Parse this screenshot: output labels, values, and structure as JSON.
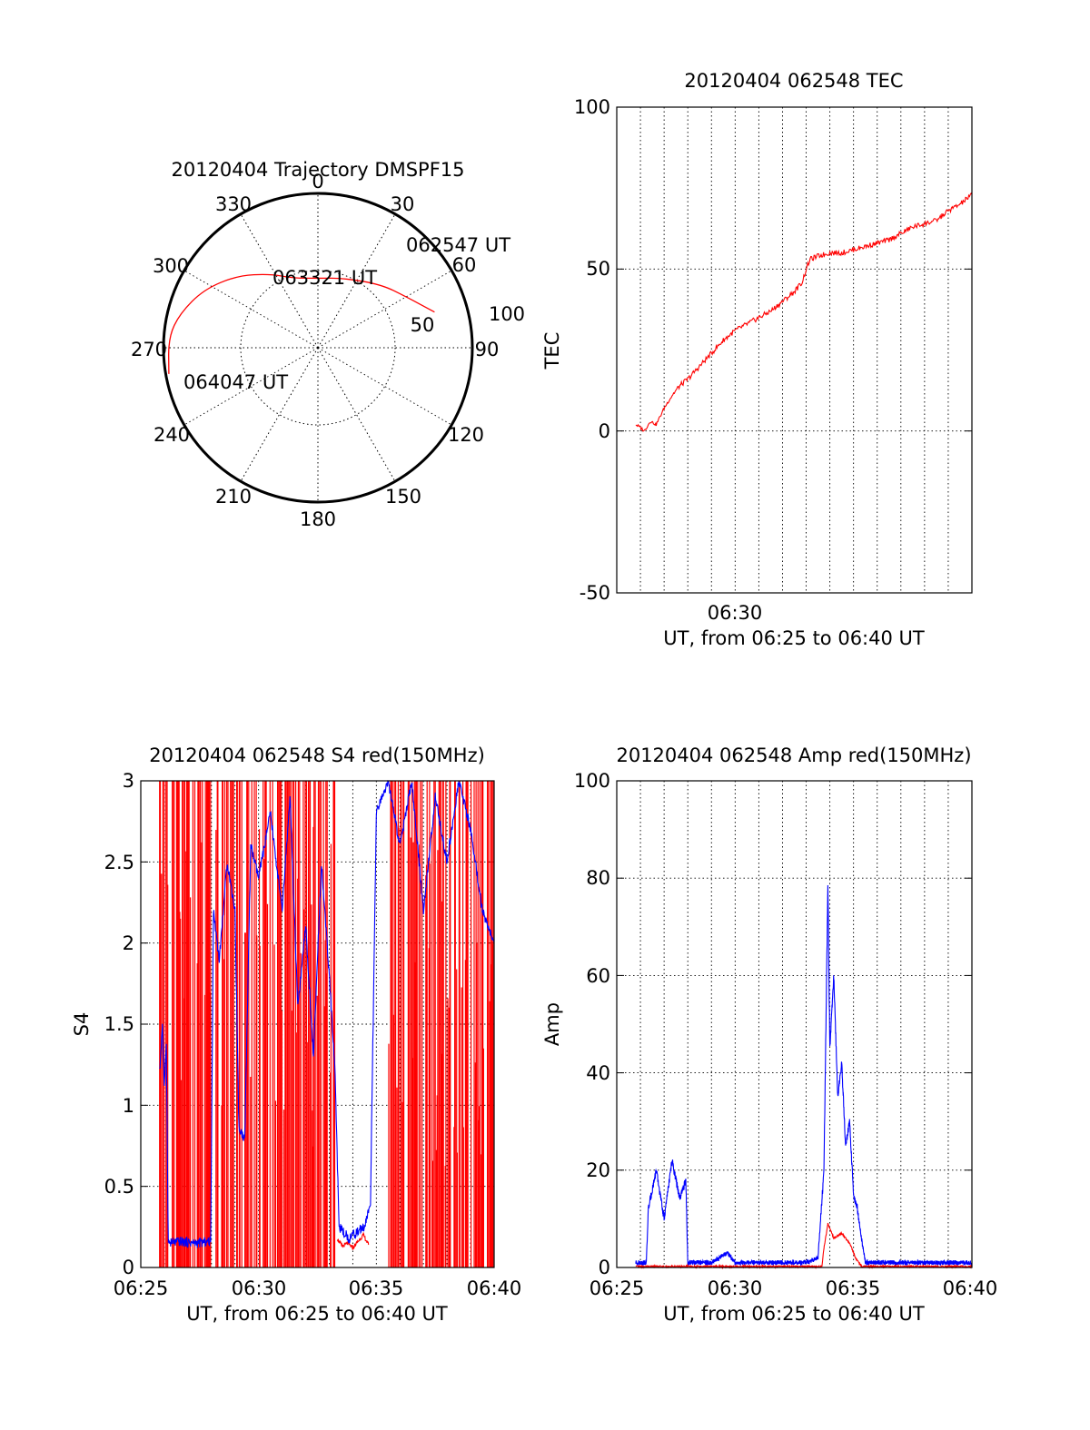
{
  "colors": {
    "red": "#ff0000",
    "blue": "#0000ff",
    "axis": "#000000",
    "grid": "#000000"
  },
  "chart_data": [
    {
      "id": "trajectory",
      "type": "polar",
      "title": "20120404 Trajectory DMSPF15",
      "azimuth_labels": [
        "0",
        "30",
        "60",
        "90",
        "120",
        "150",
        "180",
        "210",
        "240",
        "270",
        "300",
        "330"
      ],
      "radial_labels": [
        "50",
        "100"
      ],
      "series": [
        {
          "color": "red",
          "points": [
            {
              "az": 73,
              "r": 79
            },
            {
              "az": 60,
              "r": 66
            },
            {
              "az": 45,
              "r": 58
            },
            {
              "az": 20,
              "r": 48
            },
            {
              "az": 0,
              "r": 45
            },
            {
              "az": -20,
              "r": 48
            },
            {
              "az": -33,
              "r": 57
            },
            {
              "az": -48,
              "r": 70
            },
            {
              "az": -63,
              "r": 83
            },
            {
              "az": -76,
              "r": 92
            },
            {
              "az": -86,
              "r": 97
            },
            {
              "az": -100,
              "r": 98
            }
          ]
        }
      ],
      "annotations": [
        {
          "text": "062547 UT",
          "az": 73,
          "r": 79
        },
        {
          "text": "063321 UT",
          "az": -11,
          "r": 45
        },
        {
          "text": "064047 UT",
          "az": -100,
          "r": 98
        }
      ]
    },
    {
      "id": "tec",
      "type": "line",
      "title": "20120404 062548 TEC",
      "ylabel": "TEC",
      "xlabel": "UT, from 06:25 to 06:40 UT",
      "xlim": [
        "06:25:00",
        "06:40:00"
      ],
      "ylim": [
        -50,
        100
      ],
      "yticks": [
        "-50",
        "0",
        "50",
        "100"
      ],
      "xticks": [
        {
          "t": "06:30:00",
          "label": "06:30"
        }
      ],
      "series": [
        {
          "color": "red",
          "points": [
            [
              "06:25:48",
              2
            ],
            [
              "06:26:00",
              1
            ],
            [
              "06:26:10",
              0
            ],
            [
              "06:26:25",
              3
            ],
            [
              "06:26:40",
              2
            ],
            [
              "06:27:00",
              7
            ],
            [
              "06:27:20",
              11
            ],
            [
              "06:27:40",
              14
            ],
            [
              "06:28:00",
              16
            ],
            [
              "06:28:30",
              20
            ],
            [
              "06:29:00",
              24
            ],
            [
              "06:29:30",
              28
            ],
            [
              "06:30:00",
              31
            ],
            [
              "06:30:30",
              33
            ],
            [
              "06:31:00",
              35
            ],
            [
              "06:31:30",
              37
            ],
            [
              "06:32:00",
              40
            ],
            [
              "06:32:30",
              43
            ],
            [
              "06:32:50",
              46
            ],
            [
              "06:33:00",
              50
            ],
            [
              "06:33:10",
              53
            ],
            [
              "06:33:30",
              54
            ],
            [
              "06:34:00",
              55
            ],
            [
              "06:34:30",
              55
            ],
            [
              "06:35:00",
              56
            ],
            [
              "06:35:30",
              57
            ],
            [
              "06:36:00",
              58
            ],
            [
              "06:36:30",
              59
            ],
            [
              "06:37:00",
              61
            ],
            [
              "06:37:30",
              63
            ],
            [
              "06:38:00",
              64
            ],
            [
              "06:38:30",
              65
            ],
            [
              "06:39:00",
              68
            ],
            [
              "06:39:30",
              70
            ],
            [
              "06:40:00",
              73
            ]
          ]
        }
      ]
    },
    {
      "id": "s4",
      "type": "line",
      "title": "20120404 062548 S4 red(150MHz)",
      "ylabel": "S4",
      "xlabel": "UT, from 06:25 to 06:40 UT",
      "xlim": [
        "06:25:00",
        "06:40:00"
      ],
      "ylim": [
        0,
        3
      ],
      "yticks": [
        "0",
        "0.5",
        "1",
        "1.5",
        "2",
        "2.5",
        "3"
      ],
      "xticks": [
        {
          "t": "06:25:00",
          "label": "06:25"
        },
        {
          "t": "06:30:00",
          "label": "06:30"
        },
        {
          "t": "06:35:00",
          "label": "06:35"
        },
        {
          "t": "06:40:00",
          "label": "06:40"
        }
      ],
      "series": [
        {
          "color": "red",
          "spike_intervals": [
            [
              "06:25:48",
              "06:28:00"
            ],
            [
              "06:28:10",
              "06:33:20"
            ],
            [
              "06:35:30",
              "06:40:00"
            ]
          ],
          "low_interval": [
            "06:33:20",
            "06:34:40"
          ],
          "low_values": [
            0.18,
            0.13,
            0.15,
            0.12,
            0.16,
            0.2,
            0.14
          ]
        },
        {
          "color": "blue",
          "points": [
            [
              "06:25:48",
              1.2
            ],
            [
              "06:25:55",
              1.5
            ],
            [
              "06:26:00",
              1.1
            ],
            [
              "06:26:05",
              1.4
            ],
            [
              "06:26:10",
              0.15
            ],
            [
              "06:26:40",
              0.16
            ],
            [
              "06:27:20",
              0.15
            ],
            [
              "06:27:58",
              0.16
            ],
            [
              "06:28:05",
              2.2
            ],
            [
              "06:28:20",
              1.9
            ],
            [
              "06:28:40",
              2.5
            ],
            [
              "06:29:00",
              2.2
            ],
            [
              "06:29:10",
              0.85
            ],
            [
              "06:29:25",
              0.8
            ],
            [
              "06:29:40",
              2.6
            ],
            [
              "06:30:00",
              2.4
            ],
            [
              "06:30:30",
              2.8
            ],
            [
              "06:31:00",
              2.2
            ],
            [
              "06:31:20",
              2.9
            ],
            [
              "06:31:40",
              1.6
            ],
            [
              "06:32:00",
              2.1
            ],
            [
              "06:32:20",
              1.3
            ],
            [
              "06:32:40",
              2.5
            ],
            [
              "06:33:00",
              1.8
            ],
            [
              "06:33:15",
              1.2
            ],
            [
              "06:33:25",
              0.25
            ],
            [
              "06:33:50",
              0.18
            ],
            [
              "06:34:10",
              0.22
            ],
            [
              "06:34:30",
              0.25
            ],
            [
              "06:34:45",
              0.4
            ],
            [
              "06:35:00",
              2.8
            ],
            [
              "06:35:30",
              3.0
            ],
            [
              "06:36:00",
              2.6
            ],
            [
              "06:36:30",
              3.0
            ],
            [
              "06:37:00",
              2.2
            ],
            [
              "06:37:30",
              2.9
            ],
            [
              "06:38:00",
              2.5
            ],
            [
              "06:38:30",
              3.0
            ],
            [
              "06:39:00",
              2.7
            ],
            [
              "06:39:30",
              2.2
            ],
            [
              "06:40:00",
              2.0
            ]
          ]
        }
      ]
    },
    {
      "id": "amp",
      "type": "line",
      "title": "20120404 062548 Amp red(150MHz)",
      "ylabel": "Amp",
      "xlabel": "UT, from 06:25 to 06:40 UT",
      "xlim": [
        "06:25:00",
        "06:40:00"
      ],
      "ylim": [
        0,
        100
      ],
      "yticks": [
        "0",
        "20",
        "40",
        "60",
        "80",
        "100"
      ],
      "xticks": [
        {
          "t": "06:25:00",
          "label": "06:25"
        },
        {
          "t": "06:30:00",
          "label": "06:30"
        },
        {
          "t": "06:35:00",
          "label": "06:35"
        },
        {
          "t": "06:40:00",
          "label": "06:40"
        }
      ],
      "series": [
        {
          "color": "blue",
          "points": [
            [
              "06:25:48",
              1
            ],
            [
              "06:26:15",
              1
            ],
            [
              "06:26:20",
              12
            ],
            [
              "06:26:40",
              20
            ],
            [
              "06:27:00",
              10
            ],
            [
              "06:27:20",
              22
            ],
            [
              "06:27:40",
              14
            ],
            [
              "06:27:55",
              18
            ],
            [
              "06:28:00",
              1
            ],
            [
              "06:29:00",
              1
            ],
            [
              "06:29:20",
              2
            ],
            [
              "06:29:40",
              3
            ],
            [
              "06:30:00",
              1
            ],
            [
              "06:31:00",
              1
            ],
            [
              "06:32:00",
              1
            ],
            [
              "06:33:00",
              1
            ],
            [
              "06:33:30",
              2
            ],
            [
              "06:33:45",
              20
            ],
            [
              "06:33:55",
              79
            ],
            [
              "06:34:00",
              45
            ],
            [
              "06:34:10",
              60
            ],
            [
              "06:34:20",
              35
            ],
            [
              "06:34:30",
              42
            ],
            [
              "06:34:40",
              25
            ],
            [
              "06:34:50",
              30
            ],
            [
              "06:35:00",
              15
            ],
            [
              "06:35:10",
              12
            ],
            [
              "06:35:20",
              6
            ],
            [
              "06:35:30",
              1
            ],
            [
              "06:36:00",
              1
            ],
            [
              "06:37:00",
              1
            ],
            [
              "06:38:00",
              1
            ],
            [
              "06:39:00",
              1
            ],
            [
              "06:40:00",
              1
            ]
          ]
        },
        {
          "color": "red",
          "points": [
            [
              "06:25:48",
              0.2
            ],
            [
              "06:33:40",
              0.2
            ],
            [
              "06:33:45",
              4
            ],
            [
              "06:33:55",
              9
            ],
            [
              "06:34:10",
              6
            ],
            [
              "06:34:30",
              7
            ],
            [
              "06:34:50",
              5
            ],
            [
              "06:35:05",
              2
            ],
            [
              "06:35:20",
              0.2
            ],
            [
              "06:40:00",
              0.2
            ]
          ]
        }
      ]
    }
  ]
}
